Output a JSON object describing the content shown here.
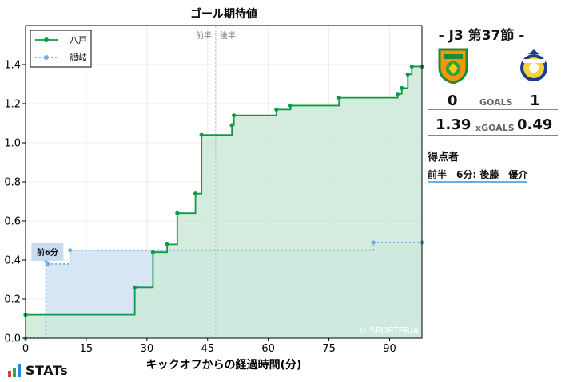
{
  "chart_data": {
    "type": "line",
    "title": "ゴール期待値",
    "xlabel": "キックオフからの経過時間(分)",
    "ylabel": "",
    "xlim": [
      0,
      98
    ],
    "ylim": [
      0,
      1.6
    ],
    "xticks": [
      0,
      15,
      30,
      45,
      60,
      75,
      90
    ],
    "yticks": [
      0.0,
      0.2,
      0.4,
      0.6,
      0.8,
      1.0,
      1.2,
      1.4
    ],
    "halftime_minute": 47,
    "halftime_labels": [
      "前半",
      "後半"
    ],
    "grid": true,
    "legend_position": "top-left",
    "watermark": "© SPORTERIA",
    "goal_marker": {
      "team": "讃岐",
      "minute": 6,
      "label": "前6分"
    },
    "series": [
      {
        "name": "八戸",
        "color": "#0b9a48",
        "fill": "#cde9d8",
        "style": "solid",
        "points": [
          [
            0,
            0.12
          ],
          [
            27,
            0.26
          ],
          [
            31.5,
            0.44
          ],
          [
            35,
            0.48
          ],
          [
            37.5,
            0.64
          ],
          [
            42,
            0.74
          ],
          [
            43.5,
            1.04
          ],
          [
            51,
            1.09
          ],
          [
            51.5,
            1.14
          ],
          [
            62,
            1.17
          ],
          [
            65.5,
            1.19
          ],
          [
            77.5,
            1.23
          ],
          [
            92,
            1.25
          ],
          [
            93,
            1.28
          ],
          [
            94.5,
            1.35
          ],
          [
            95.5,
            1.39
          ],
          [
            98,
            1.39
          ]
        ]
      },
      {
        "name": "讃岐",
        "color": "#6aaee0",
        "fill": "#d6e6f5",
        "style": "dotted",
        "points": [
          [
            0,
            0.0
          ],
          [
            5,
            0.4
          ],
          [
            5.5,
            0.38
          ],
          [
            11,
            0.45
          ],
          [
            86,
            0.49
          ],
          [
            98,
            0.49
          ]
        ]
      }
    ]
  },
  "match": {
    "title": "- J3 第37節 -",
    "home_goals": "0",
    "away_goals": "1",
    "goals_label": "GOALS",
    "home_xg": "1.39",
    "away_xg": "0.49",
    "xgoals_label": "xGOALS",
    "scorers_title": "得点者",
    "scorer_line": "前半　6分: 後藤　優介",
    "home_badge": "shield-crest",
    "away_badge": "round-crest",
    "home_badge_color": "#f39800",
    "away_badge_color": "#1d3d8f"
  },
  "brand": "STATs"
}
